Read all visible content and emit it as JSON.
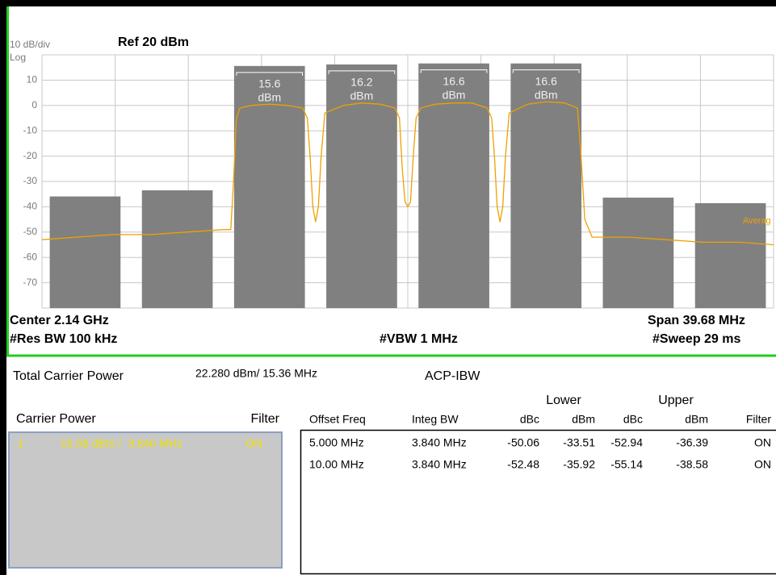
{
  "header": {
    "scale": "10 dB/div",
    "ref": "Ref  20 dBm",
    "log": "Log"
  },
  "chart_data": {
    "type": "bar",
    "ylim": [
      -80,
      20
    ],
    "yticks": [
      10,
      0,
      -10,
      -20,
      -30,
      -40,
      -50,
      -60,
      -70
    ],
    "xlim": [
      -19.84,
      19.84
    ],
    "grid": true,
    "color": "#808080",
    "carriers": {
      "centers": [
        -7.5,
        -2.5,
        2.5,
        7.5
      ],
      "values": [
        15.6,
        16.2,
        16.6,
        16.6
      ],
      "unit": "dBm"
    },
    "adjacent": {
      "centers": [
        -17.5,
        -12.5,
        12.5,
        17.5
      ]
    },
    "trace": {
      "color": "#f0a000",
      "x": [
        -19.84,
        -18,
        -16,
        -14,
        -12,
        -10,
        -9.6,
        -9.45,
        -9.3,
        -9.1,
        -8.5,
        -7.5,
        -6.5,
        -5.7,
        -5.45,
        -5.3,
        -5.15,
        -5.0,
        -4.85,
        -4.7,
        -4.5,
        -3.5,
        -2.5,
        -1.5,
        -0.7,
        -0.45,
        -0.3,
        -0.15,
        0,
        0.15,
        0.3,
        0.45,
        0.7,
        1.5,
        2.5,
        3.5,
        4.3,
        4.55,
        4.7,
        4.85,
        5.0,
        5.15,
        5.3,
        5.5,
        6.5,
        7.5,
        8.5,
        9.2,
        9.4,
        9.6,
        10,
        12,
        14,
        16,
        18,
        19.84
      ],
      "values": [
        -53,
        -52,
        -51,
        -51,
        -50,
        -49,
        -49,
        -30,
        -5,
        -1,
        0,
        0.5,
        0,
        -1,
        -5,
        -20,
        -40,
        -46,
        -40,
        -20,
        -3,
        0,
        1,
        0.5,
        -1,
        -5,
        -25,
        -38,
        -40,
        -38,
        -20,
        -5,
        -1,
        0.5,
        1,
        1,
        -1,
        -5,
        -20,
        -40,
        -46,
        -40,
        -20,
        -3,
        0.5,
        1.5,
        1,
        -1,
        -20,
        -45,
        -52,
        -52,
        -53,
        -54,
        -54,
        -55
      ]
    },
    "annotation": "Averag"
  },
  "footer": {
    "center": "Center  2.14 GHz",
    "res_bw": "#Res BW  100 kHz",
    "vbw": "#VBW  1 MHz",
    "span": "Span 39.68 MHz",
    "sweep": "#Sweep  29 ms"
  },
  "summary": {
    "label": "Total Carrier Power",
    "value": "22.280 dBm/ 15.36 MHz",
    "mode": "ACP-IBW"
  },
  "carrier_table": {
    "title": "Carrier Power",
    "filter": "Filter",
    "rows": [
      [
        "1",
        "15.58 dBm /  3.840 MHz",
        "ON"
      ]
    ]
  },
  "acp_table": {
    "groups": [
      "Lower",
      "Upper"
    ],
    "columns": [
      "Offset Freq",
      "Integ BW",
      "dBc",
      "dBm",
      "dBc",
      "dBm",
      "Filter"
    ],
    "rows": [
      [
        "5.000 MHz",
        "3.840 MHz",
        "-50.06",
        "-33.51",
        "-52.94",
        "-36.39",
        "ON"
      ],
      [
        "10.00 MHz",
        "3.840 MHz",
        "-52.48",
        "-35.92",
        "-55.14",
        "-38.58",
        "ON"
      ]
    ]
  }
}
